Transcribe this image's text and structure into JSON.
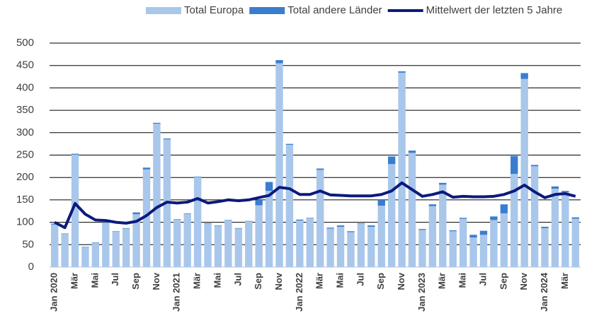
{
  "chart_data": {
    "type": "bar",
    "categories": [
      "Jan 2020",
      null,
      "Mär",
      null,
      "Mai",
      null,
      "Jul",
      null,
      "Sep",
      null,
      "Nov",
      null,
      "Jan 2021",
      null,
      "Mär",
      null,
      "Mai",
      null,
      "Jul",
      null,
      "Sep",
      null,
      "Nov",
      null,
      "Jan 2022",
      null,
      "Mär",
      null,
      "Mai",
      null,
      "Jul",
      null,
      "Sep",
      null,
      "Nov",
      null,
      "Jan 2023",
      null,
      "Mär",
      null,
      "Mai",
      null,
      "Jul",
      null,
      "Sep",
      null,
      "Nov",
      null,
      "Jan 2024",
      null,
      "Mär",
      null
    ],
    "series": [
      {
        "name": "Total Europa",
        "color": "#a9c7ea",
        "stack": true,
        "values": [
          95,
          74,
          251,
          44,
          54,
          99,
          79,
          86,
          118,
          218,
          320,
          285,
          106,
          119,
          201,
          97,
          92,
          104,
          86,
          102,
          138,
          170,
          455,
          273,
          104,
          109,
          217,
          86,
          90,
          78,
          97,
          90,
          137,
          230,
          434,
          255,
          83,
          136,
          184,
          80,
          108,
          66,
          72,
          105,
          120,
          208,
          420,
          225,
          87,
          175,
          167,
          108
        ]
      },
      {
        "name": "Total andere Länder",
        "color": "#3a7dcf",
        "stack": true,
        "values": [
          2,
          1,
          2,
          1,
          1,
          1,
          1,
          1,
          4,
          4,
          2,
          2,
          1,
          1,
          1,
          1,
          1,
          1,
          1,
          1,
          12,
          20,
          7,
          2,
          2,
          1,
          3,
          2,
          3,
          2,
          1,
          3,
          13,
          17,
          3,
          5,
          2,
          4,
          4,
          2,
          2,
          6,
          9,
          8,
          20,
          40,
          13,
          3,
          3,
          5,
          3,
          3
        ]
      },
      {
        "name": "Mittelwert der letzten 5 Jahre",
        "color": "#0b1a7c",
        "type": "line",
        "values": [
          100,
          88,
          142,
          118,
          105,
          104,
          100,
          98,
          102,
          115,
          133,
          145,
          143,
          145,
          153,
          143,
          146,
          150,
          148,
          150,
          155,
          160,
          178,
          175,
          162,
          162,
          170,
          161,
          160,
          159,
          159,
          159,
          162,
          170,
          188,
          173,
          158,
          162,
          168,
          156,
          158,
          157,
          157,
          158,
          162,
          170,
          183,
          168,
          155,
          162,
          164,
          158
        ]
      }
    ],
    "ylim": [
      0,
      500
    ],
    "yticks": [
      0,
      50,
      100,
      150,
      200,
      250,
      300,
      350,
      400,
      450,
      500
    ],
    "grid": true,
    "legend": "top"
  }
}
